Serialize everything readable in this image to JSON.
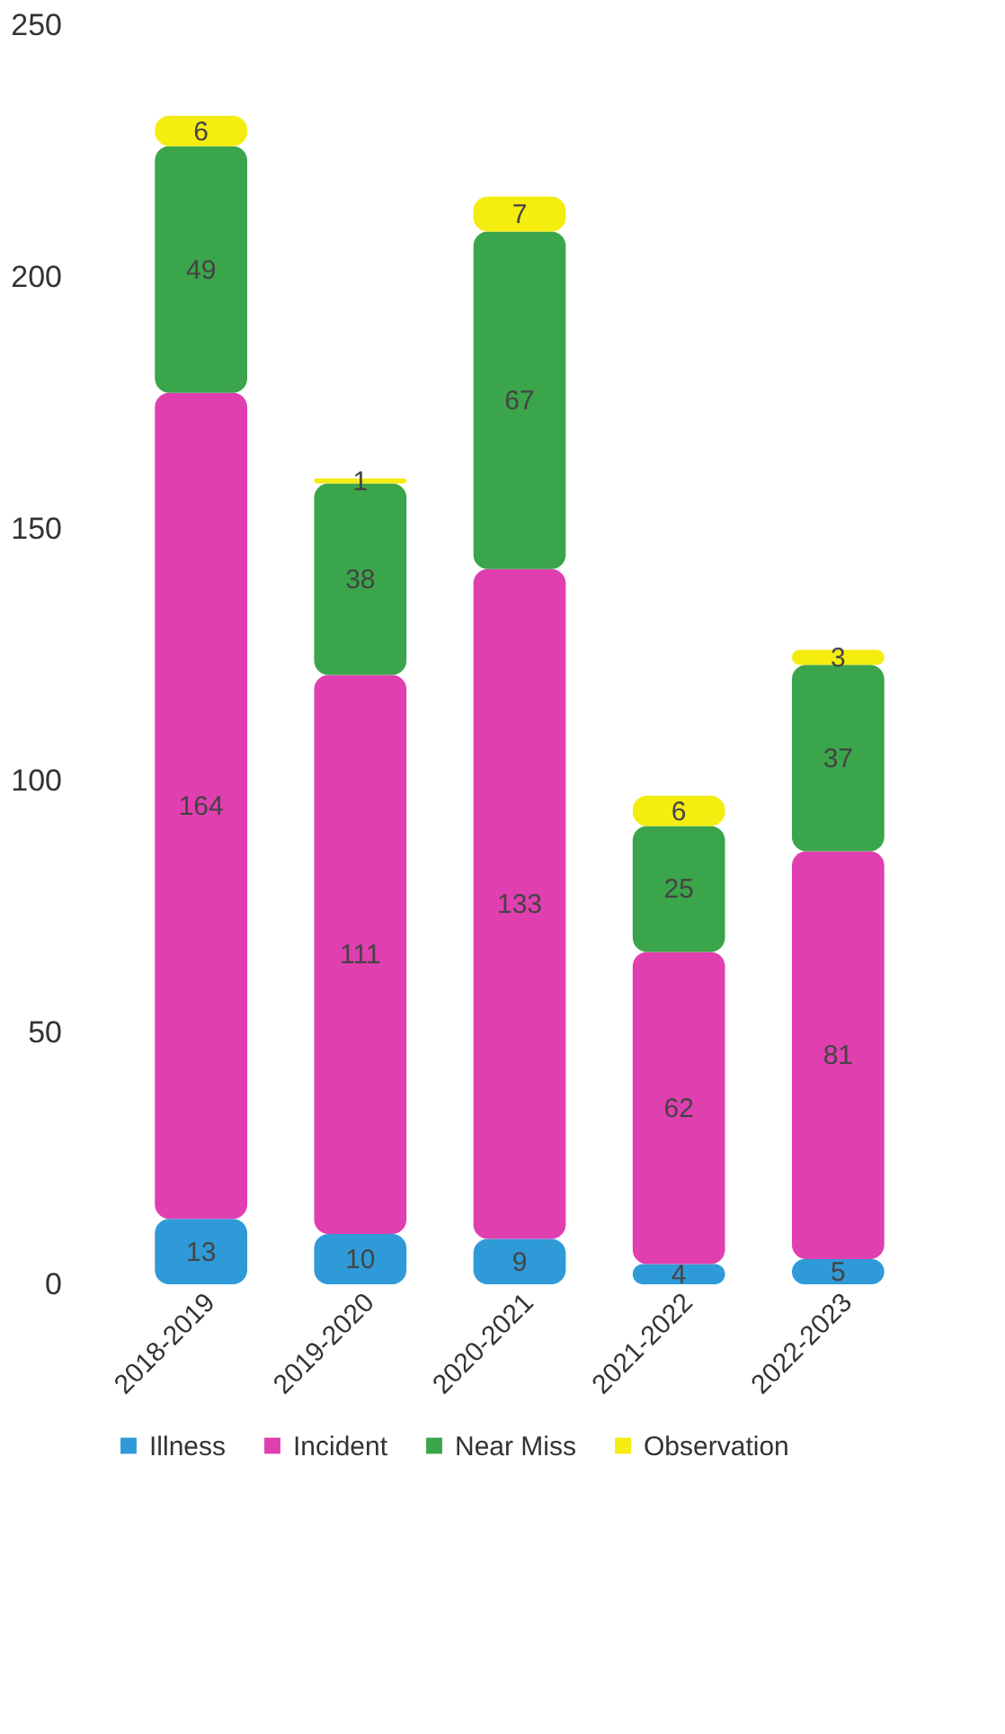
{
  "chart_data": {
    "type": "bar",
    "stacked": true,
    "categories": [
      "2018-2019",
      "2019-2020",
      "2020-2021",
      "2021-2022",
      "2022-2023"
    ],
    "series": [
      {
        "name": "Illness",
        "color": "#2f9ad8",
        "values": [
          13,
          10,
          9,
          4,
          5
        ]
      },
      {
        "name": "Incident",
        "color": "#e03fb0",
        "values": [
          164,
          111,
          133,
          62,
          81
        ]
      },
      {
        "name": "Near Miss",
        "color": "#3aa54a",
        "values": [
          49,
          38,
          67,
          25,
          37
        ]
      },
      {
        "name": "Observation",
        "color": "#f5ec10",
        "values": [
          6,
          1,
          7,
          6,
          3
        ]
      }
    ],
    "ylim": [
      0,
      250
    ],
    "yticks": [
      0,
      50,
      100,
      150,
      200,
      250
    ],
    "data_labels": true,
    "grid": false,
    "legend": "bottom"
  }
}
